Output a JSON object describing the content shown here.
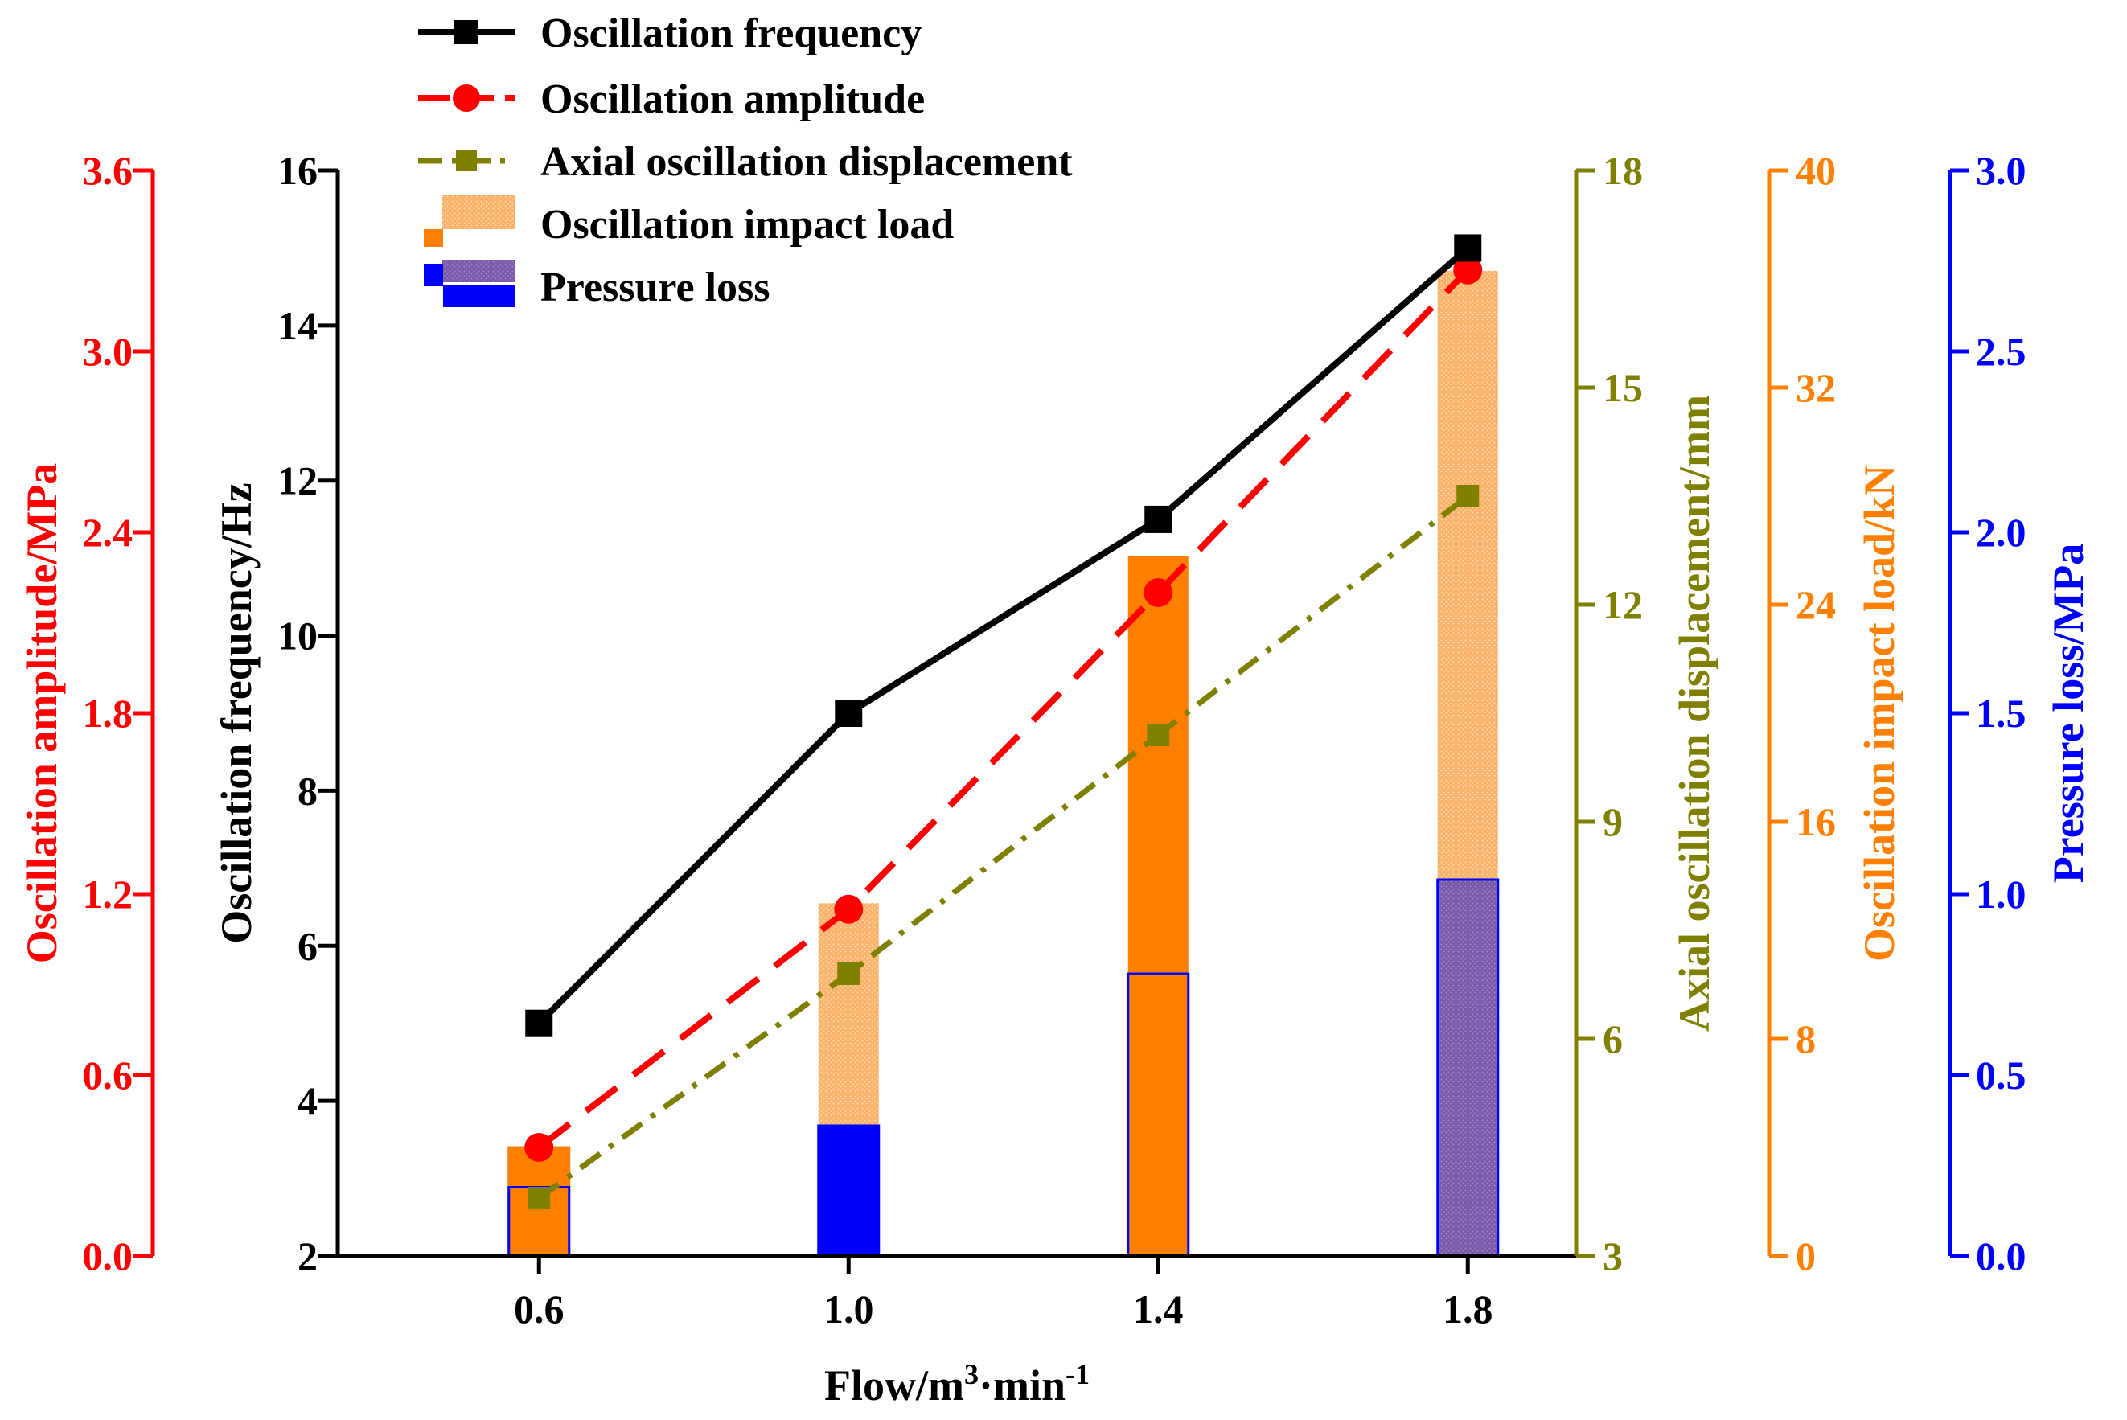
{
  "chart_data": {
    "type": "bar",
    "x": [
      0.6,
      1.0,
      1.4,
      1.8
    ],
    "xtick_labels": [
      "0.6",
      "1.0",
      "1.4",
      "1.8"
    ],
    "xlim": [
      0.34,
      1.94
    ],
    "xlabel": {
      "main": "Flow/m",
      "sup1": "3",
      "mid": "·min",
      "sup2": "-1"
    },
    "axes": {
      "freq": {
        "label": "Oscillation frequency/Hz",
        "range": [
          2,
          16
        ],
        "ticks": [
          "2",
          "4",
          "6",
          "8",
          "10",
          "12",
          "14",
          "16"
        ],
        "color": "#000000"
      },
      "amp": {
        "label": "Oscillation amplitude/MPa",
        "range": [
          0,
          3.6
        ],
        "ticks": [
          "0.0",
          "0.6",
          "1.2",
          "1.8",
          "2.4",
          "3.0",
          "3.6"
        ],
        "color": "#ff0000"
      },
      "disp": {
        "label": "Axial oscillation displacement/mm",
        "range": [
          3,
          18
        ],
        "ticks": [
          "3",
          "6",
          "9",
          "12",
          "15",
          "18"
        ],
        "color": "#808000"
      },
      "load": {
        "label": "Oscillation impact load/kN",
        "range": [
          0,
          40
        ],
        "ticks": [
          "0",
          "8",
          "16",
          "24",
          "32",
          "40"
        ],
        "color": "#ff8000"
      },
      "loss": {
        "label": "Pressure loss/MPa",
        "range": [
          0,
          3.0
        ],
        "ticks": [
          "0.0",
          "0.5",
          "1.0",
          "1.5",
          "2.0",
          "2.5",
          "3.0"
        ],
        "color": "#0000ff"
      }
    },
    "series": [
      {
        "name": "Oscillation frequency",
        "kind": "line",
        "axis": "freq",
        "values": [
          5.0,
          9.0,
          11.5,
          15.0
        ],
        "color": "#000000",
        "marker": "square",
        "dash": "solid"
      },
      {
        "name": "Oscillation amplitude",
        "kind": "line",
        "axis": "amp",
        "values": [
          0.36,
          1.15,
          2.2,
          3.27
        ],
        "color": "#ff0000",
        "marker": "circle",
        "dash": "dashed"
      },
      {
        "name": "Axial oscillation displacement",
        "kind": "line",
        "axis": "disp",
        "values": [
          3.8,
          6.9,
          10.2,
          13.5
        ],
        "color": "#808000",
        "marker": "square",
        "dash": "dashdot"
      },
      {
        "name": "Oscillation impact load",
        "kind": "bar",
        "axis": "load",
        "values": [
          4.0,
          13.0,
          25.8,
          36.3
        ],
        "color": "#ff8000"
      },
      {
        "name": "Pressure loss",
        "kind": "bar",
        "axis": "loss",
        "values": [
          0.19,
          0.36,
          0.78,
          1.04
        ],
        "color": "#0000ff"
      }
    ],
    "legend_position": "top-left"
  }
}
